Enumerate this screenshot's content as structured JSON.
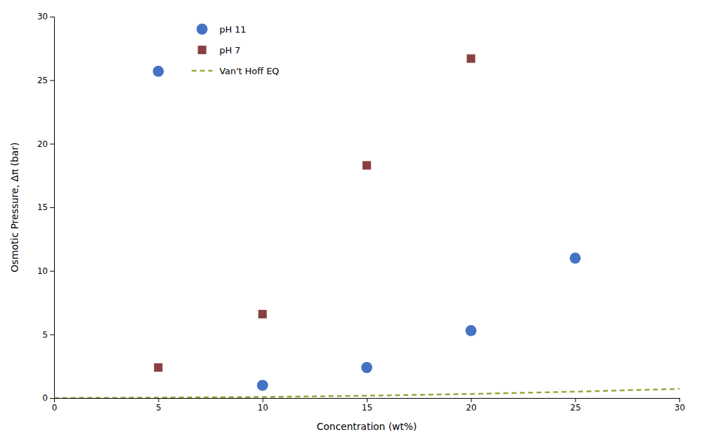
{
  "chart_data": {
    "type": "scatter",
    "xlabel": "Concentration (wt%)",
    "ylabel": "Osmotic Pressure, Δπ (bar)",
    "xlim": [
      0,
      30
    ],
    "ylim": [
      0,
      30
    ],
    "xticks": [
      0,
      5,
      10,
      15,
      20,
      25,
      30
    ],
    "yticks": [
      0,
      5,
      10,
      15,
      20,
      25,
      30
    ],
    "grid": false,
    "legend": "upper left",
    "series": [
      {
        "name": "pH 11",
        "type": "scatter",
        "marker": "circle",
        "color": "#4472C4",
        "x": [
          5,
          10,
          15,
          20,
          25
        ],
        "values": [
          25.7,
          1.0,
          2.4,
          5.3,
          11.0
        ]
      },
      {
        "name": "pH 7",
        "type": "scatter",
        "marker": "square",
        "color": "#8B4040",
        "x": [
          5,
          10,
          15,
          20
        ],
        "values": [
          2.4,
          6.6,
          18.3,
          26.7
        ]
      },
      {
        "name": "Van't Hoff EQ",
        "type": "line",
        "line_style": "dashed",
        "color": "#92AA3A",
        "x": [
          0,
          5,
          10,
          15,
          20,
          25,
          30
        ],
        "values": [
          0.0,
          0.03,
          0.08,
          0.18,
          0.32,
          0.5,
          0.72
        ]
      }
    ]
  }
}
